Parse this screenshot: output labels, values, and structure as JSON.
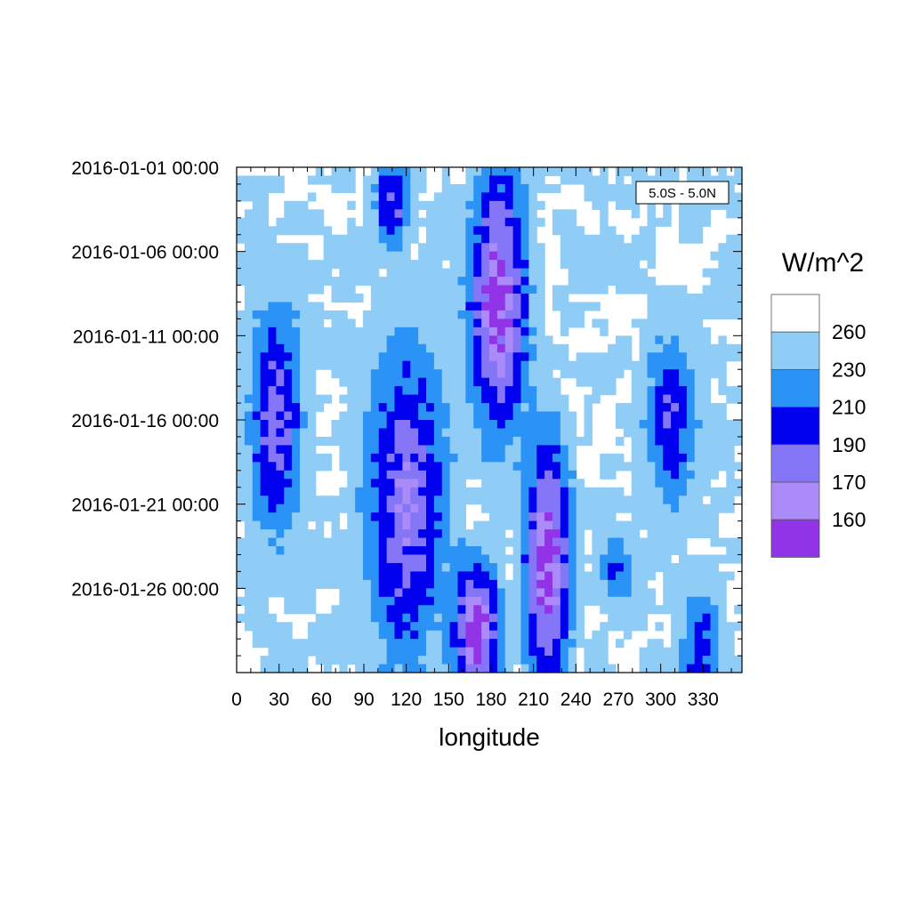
{
  "chart_data": {
    "type": "heatmap",
    "title": "",
    "xlabel": "longitude",
    "ylabel": "",
    "xlim": [
      0,
      357.5
    ],
    "ylim": [
      "2016-01-01 00:00",
      "2016-01-31 00:00"
    ],
    "x_ticks": [
      0,
      30,
      60,
      90,
      120,
      150,
      180,
      210,
      240,
      270,
      300,
      330
    ],
    "y_ticks": [
      "2016-01-01 00:00",
      "2016-01-06 00:00",
      "2016-01-11 00:00",
      "2016-01-16 00:00",
      "2016-01-21 00:00",
      "2016-01-26 00:00"
    ],
    "annotation": "5.0S - 5.0N",
    "colorbar": {
      "units": "W/m^2",
      "levels": [
        260,
        230,
        210,
        190,
        170,
        160
      ],
      "colors": [
        "#ffffff",
        "#8fcdf7",
        "#2a93f5",
        "#0000ee",
        "#8575f7",
        "#ab8bfa",
        "#9133e6"
      ]
    },
    "features": [
      {
        "lon": [
          170,
          200
        ],
        "day": [
          0,
          16
        ],
        "value": 150
      },
      {
        "lon": [
          210,
          230
        ],
        "day": [
          16,
          31
        ],
        "value": 150
      },
      {
        "lon": [
          160,
          180
        ],
        "day": [
          24,
          31
        ],
        "value": 150
      },
      {
        "lon": [
          95,
          145
        ],
        "day": [
          10,
          30
        ],
        "value": 175
      },
      {
        "lon": [
          15,
          40
        ],
        "day": [
          8,
          22
        ],
        "value": 180
      },
      {
        "lon": [
          105,
          115
        ],
        "day": [
          0,
          4
        ],
        "value": 185
      },
      {
        "lon": [
          295,
          320
        ],
        "day": [
          10,
          20
        ],
        "value": 195
      },
      {
        "lon": [
          320,
          335
        ],
        "day": [
          26,
          31
        ],
        "value": 195
      },
      {
        "lon": [
          265,
          275
        ],
        "day": [
          23,
          25
        ],
        "value": 205
      }
    ]
  }
}
